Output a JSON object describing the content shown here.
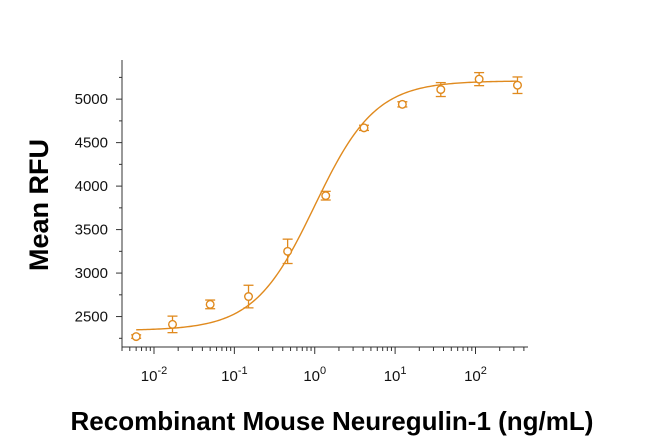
{
  "chart_data": {
    "type": "scatter",
    "xlabel": "Recombinant Mouse Neuregulin-1 (ng/mL)",
    "ylabel": "Mean RFU",
    "x_scale": "log",
    "xlim": [
      0.004,
      450
    ],
    "ylim": [
      2150,
      5450
    ],
    "x_ticks": [
      {
        "value": 0.01,
        "base": "10",
        "exp": "-2"
      },
      {
        "value": 0.1,
        "base": "10",
        "exp": "-1"
      },
      {
        "value": 1,
        "base": "10",
        "exp": "0"
      },
      {
        "value": 10,
        "base": "10",
        "exp": "1"
      },
      {
        "value": 100,
        "base": "10",
        "exp": "2"
      }
    ],
    "y_ticks": [
      2500,
      3000,
      3500,
      4000,
      4500,
      5000
    ],
    "grid": false,
    "color": "#e08a1e",
    "series": [
      {
        "marker": "open-circle",
        "x": [
          0.006,
          0.017,
          0.05,
          0.15,
          0.46,
          1.37,
          4.1,
          12.3,
          37,
          111,
          333
        ],
        "y": [
          2270,
          2410,
          2640,
          2730,
          3250,
          3890,
          4670,
          4940,
          5110,
          5230,
          5160
        ],
        "error": [
          20,
          95,
          50,
          130,
          140,
          50,
          30,
          30,
          80,
          75,
          95
        ]
      }
    ],
    "fit_curve": {
      "model": "4PL",
      "bottom": 2340,
      "top": 5210,
      "ec50": 1.0,
      "hill": 1.15
    }
  }
}
